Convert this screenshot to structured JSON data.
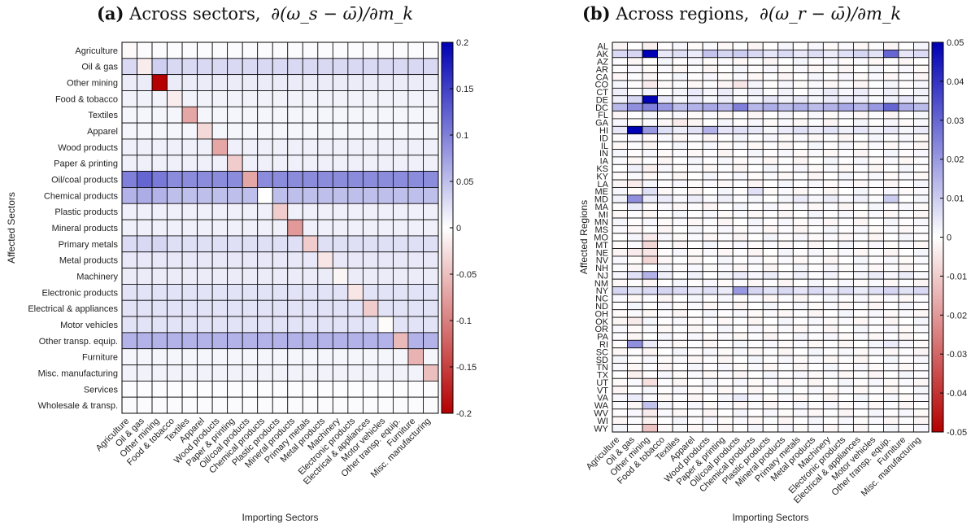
{
  "chart_data": [
    {
      "type": "heatmap",
      "panel_label": "(a)",
      "title": "Across sectors, ∂(ω_s − ω̄)/∂m_k",
      "title_text": "Across sectors,",
      "title_formula": "∂(ω_s − ω̄)/∂m_k",
      "xlabel": "Importing Sectors",
      "ylabel": "Affected Sectors",
      "x_categories": [
        "Agriculture",
        "Oil & gas",
        "Other mining",
        "Food & tobacco",
        "Textiles",
        "Apparel",
        "Wood products",
        "Paper & printing",
        "Oil/coal products",
        "Chemical products",
        "Plastic products",
        "Mineral products",
        "Primary metals",
        "Metal products",
        "Machinery",
        "Electronic products",
        "Electrical & appliances",
        "Motor vehicles",
        "Other transp. equip.",
        "Furniture",
        "Misc. manufacturing"
      ],
      "y_categories": [
        "Agriculture",
        "Oil & gas",
        "Other mining",
        "Food & tobacco",
        "Textiles",
        "Apparel",
        "Wood products",
        "Paper & printing",
        "Oil/coal products",
        "Chemical products",
        "Plastic products",
        "Mineral products",
        "Primary metals",
        "Metal products",
        "Machinery",
        "Electronic products",
        "Electrical & appliances",
        "Motor vehicles",
        "Other transp. equip.",
        "Furniture",
        "Misc. manufacturing",
        "Services",
        "Wholesale & transp."
      ],
      "row_base": [
        0.003,
        0.03,
        0.015,
        0.01,
        0.008,
        0.008,
        0.012,
        0.012,
        0.09,
        0.05,
        0.012,
        0.012,
        0.025,
        0.018,
        0.015,
        0.022,
        0.022,
        0.022,
        0.06,
        0.008,
        0.01,
        0.002,
        0.003
      ],
      "row_overrides": {
        "Oil & gas": {
          "Other mining": 0.038
        },
        "Oil/coal products": {
          "Oil & gas": 0.12,
          "Agriculture": 0.1,
          "Other mining": 0.105
        },
        "Chemical products": {
          "Agriculture": 0.06,
          "Oil & gas": 0.065,
          "Other mining": 0.06
        },
        "Primary metals": {
          "Agriculture": 0.028,
          "Oil & gas": 0.03,
          "Other mining": 0.032
        }
      },
      "diagonal": {
        "Agriculture": -0.005,
        "Oil & gas": -0.015,
        "Other mining": -0.2,
        "Food & tobacco": -0.015,
        "Textiles": -0.07,
        "Apparel": -0.03,
        "Wood products": -0.07,
        "Paper & printing": -0.04,
        "Oil/coal products": -0.07,
        "Chemical products": 0.0,
        "Plastic products": -0.04,
        "Mineral products": -0.08,
        "Primary metals": -0.04,
        "Metal products": -0.02,
        "Machinery": -0.008,
        "Electronic products": -0.02,
        "Electrical & appliances": -0.04,
        "Motor vehicles": -0.003,
        "Other transp. equip.": -0.055,
        "Furniture": -0.06,
        "Misc. manufacturing": -0.05
      },
      "colorbar": {
        "min": -0.2,
        "max": 0.2,
        "ticks": [
          "0.2",
          "0.15",
          "0.1",
          "0.05",
          "0",
          "-0.05",
          "-0.1",
          "-0.15",
          "-0.2"
        ],
        "tick_values": [
          0.2,
          0.15,
          0.1,
          0.05,
          0,
          -0.05,
          -0.1,
          -0.15,
          -0.2
        ]
      },
      "colors": {
        "negative_max": "#b40000",
        "zero": "#ffffff",
        "positive_max": "#0000b4"
      }
    },
    {
      "type": "heatmap",
      "panel_label": "(b)",
      "title": "Across regions, ∂(ω_r − ω̄)/∂m_k",
      "title_text": "Across regions,",
      "title_formula": "∂(ω_r − ω̄)/∂m_k",
      "xlabel": "Importing Sectors",
      "ylabel": "Affected Regions",
      "x_categories": [
        "Agriculture",
        "Oil & gas",
        "Other mining",
        "Food & tobacco",
        "Textiles",
        "Apparel",
        "Wood products",
        "Paper & printing",
        "Oil/coal products",
        "Chemical products",
        "Plastic products",
        "Mineral products",
        "Primary metals",
        "Metal products",
        "Machinery",
        "Electronic products",
        "Electrical & appliances",
        "Motor vehicles",
        "Other transp. equip.",
        "Furniture",
        "Misc. manufacturing"
      ],
      "y_categories": [
        "AL",
        "AK",
        "AZ",
        "AR",
        "CA",
        "CO",
        "CT",
        "DE",
        "DC",
        "FL",
        "GA",
        "HI",
        "ID",
        "IL",
        "IN",
        "IA",
        "KS",
        "KY",
        "LA",
        "ME",
        "MD",
        "MA",
        "MI",
        "MN",
        "MS",
        "MO",
        "MT",
        "NE",
        "NV",
        "NH",
        "NJ",
        "NM",
        "NY",
        "NC",
        "ND",
        "OH",
        "OK",
        "OR",
        "PA",
        "RI",
        "SC",
        "SD",
        "TN",
        "TX",
        "UT",
        "VT",
        "VA",
        "WA",
        "WV",
        "WI",
        "WY"
      ],
      "row_base": {
        "AK": 0.006,
        "DE": 0.003,
        "DC": 0.015,
        "HI": 0.004,
        "NY": 0.006,
        "NJ": 0.002,
        "MD": 0.002,
        "CT": 0.002
      },
      "cells": {
        "AK": {
          "Other mining": 0.05,
          "Oil & gas": 0.008,
          "Other transp. equip.": 0.03,
          "Wood products": 0.012,
          "Oil/coal products": 0.01
        },
        "DE": {
          "Other mining": 0.05,
          "Oil & gas": 0.008,
          "Electronic products": 0.004,
          "Chemical products": 0.002
        },
        "DC": {
          "Other mining": 0.025,
          "Oil & gas": 0.022,
          "Other transp. equip.": 0.03,
          "Oil/coal products": 0.025,
          "Food & tobacco": 0.02,
          "Motor vehicles": 0.02
        },
        "HI": {
          "Oil & gas": 0.05,
          "Other mining": 0.02,
          "Wood products": 0.015,
          "Oil/coal products": 0.006
        },
        "MD": {
          "Oil & gas": 0.022,
          "Other transp. equip.": 0.01,
          "Other mining": 0.004,
          "Chemical products": 0.002
        },
        "RI": {
          "Oil & gas": 0.022,
          "Other mining": 0.004,
          "Other transp. equip.": 0.004
        },
        "NY": {
          "Oil/coal products": 0.02,
          "Food & tobacco": 0.008
        },
        "NJ": {
          "Other mining": 0.015,
          "Oil & gas": 0.006
        },
        "ME": {
          "Other mining": 0.006,
          "Chemical products": 0.006
        },
        "MA": {
          "Oil & gas": 0.004
        },
        "AL": {
          "Other mining": -0.003
        },
        "CO": {
          "Other mining": -0.004,
          "Oil/coal products": -0.005
        },
        "GA": {
          "Textiles": -0.004
        },
        "MO": {
          "Other mining": -0.004
        },
        "MT": {
          "Other mining": -0.008
        },
        "NE": {
          "Other mining": -0.005,
          "Oil & gas": -0.004
        },
        "NV": {
          "Other mining": -0.008
        },
        "UT": {
          "Other mining": -0.006
        },
        "WA": {
          "Other mining": 0.012
        },
        "WV": {
          "Other mining": -0.004
        },
        "WI": {
          "Other mining": -0.003
        },
        "WY": {
          "Other mining": -0.012
        },
        "OK": {
          "Oil & gas": -0.004
        },
        "TX": {
          "Oil & gas": -0.003
        },
        "VA": {
          "Oil & gas": 0.004,
          "Oil/coal products": 0.004
        },
        "LA": {
          "Oil & gas": -0.004
        },
        "KS": {
          "Oil & gas": 0.003,
          "Other mining": -0.003
        }
      },
      "colorbar": {
        "min": -0.05,
        "max": 0.05,
        "ticks": [
          "0.05",
          "0.04",
          "0.03",
          "0.02",
          "0.01",
          "0",
          "-0.01",
          "-0.02",
          "-0.03",
          "-0.04",
          "-0.05"
        ],
        "tick_values": [
          0.05,
          0.04,
          0.03,
          0.02,
          0.01,
          0,
          -0.01,
          -0.02,
          -0.03,
          -0.04,
          -0.05
        ]
      },
      "colors": {
        "negative_max": "#b40000",
        "zero": "#ffffff",
        "positive_max": "#0000b4"
      }
    }
  ]
}
